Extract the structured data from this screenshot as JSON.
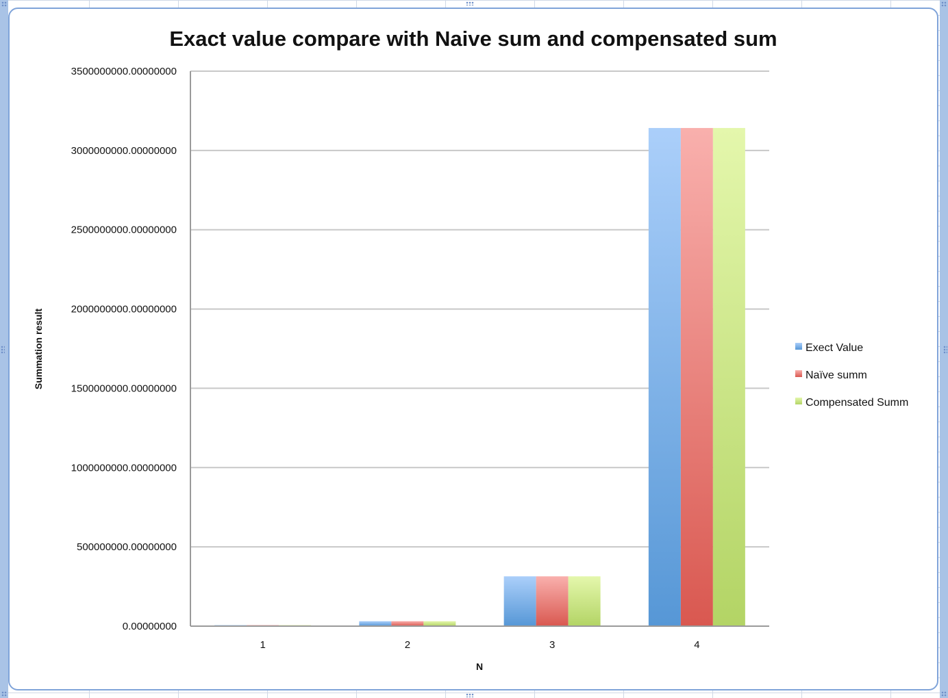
{
  "chart_data": {
    "type": "bar",
    "title": "Exact value compare with Naive sum and compensated sum",
    "xlabel": "N",
    "ylabel": "Summation  result",
    "categories": [
      "1",
      "2",
      "3",
      "4"
    ],
    "series": [
      {
        "name": "Exect Value",
        "values": [
          3141592,
          31415927,
          314159265,
          3141592654
        ]
      },
      {
        "name": "Naïve summ",
        "values": [
          3141592,
          31415927,
          314159265,
          3141592654
        ]
      },
      {
        "name": "Compensated Summ",
        "values": [
          3141592,
          31415927,
          314159265,
          3141592654
        ]
      }
    ],
    "ylim": [
      0,
      3500000000
    ],
    "yticks": [
      0,
      500000000,
      1000000000,
      1500000000,
      2000000000,
      2500000000,
      3000000000,
      3500000000
    ],
    "ytick_labels": [
      "0.00000000",
      "500000000.00000000",
      "1000000000.00000000",
      "1500000000.00000000",
      "2000000000.00000000",
      "2500000000.00000000",
      "3000000000.00000000",
      "3500000000.00000000"
    ],
    "grid": true,
    "legend_position": "right"
  },
  "colors": {
    "Exect Value": [
      "#abcffa",
      "#5697d6"
    ],
    "Naïve summ": [
      "#f9b0ad",
      "#d95850"
    ],
    "Compensated Summ": [
      "#e4f7ac",
      "#b3d465"
    ],
    "gridline": "#c8c8c8",
    "axis": "#9a9a9a"
  }
}
